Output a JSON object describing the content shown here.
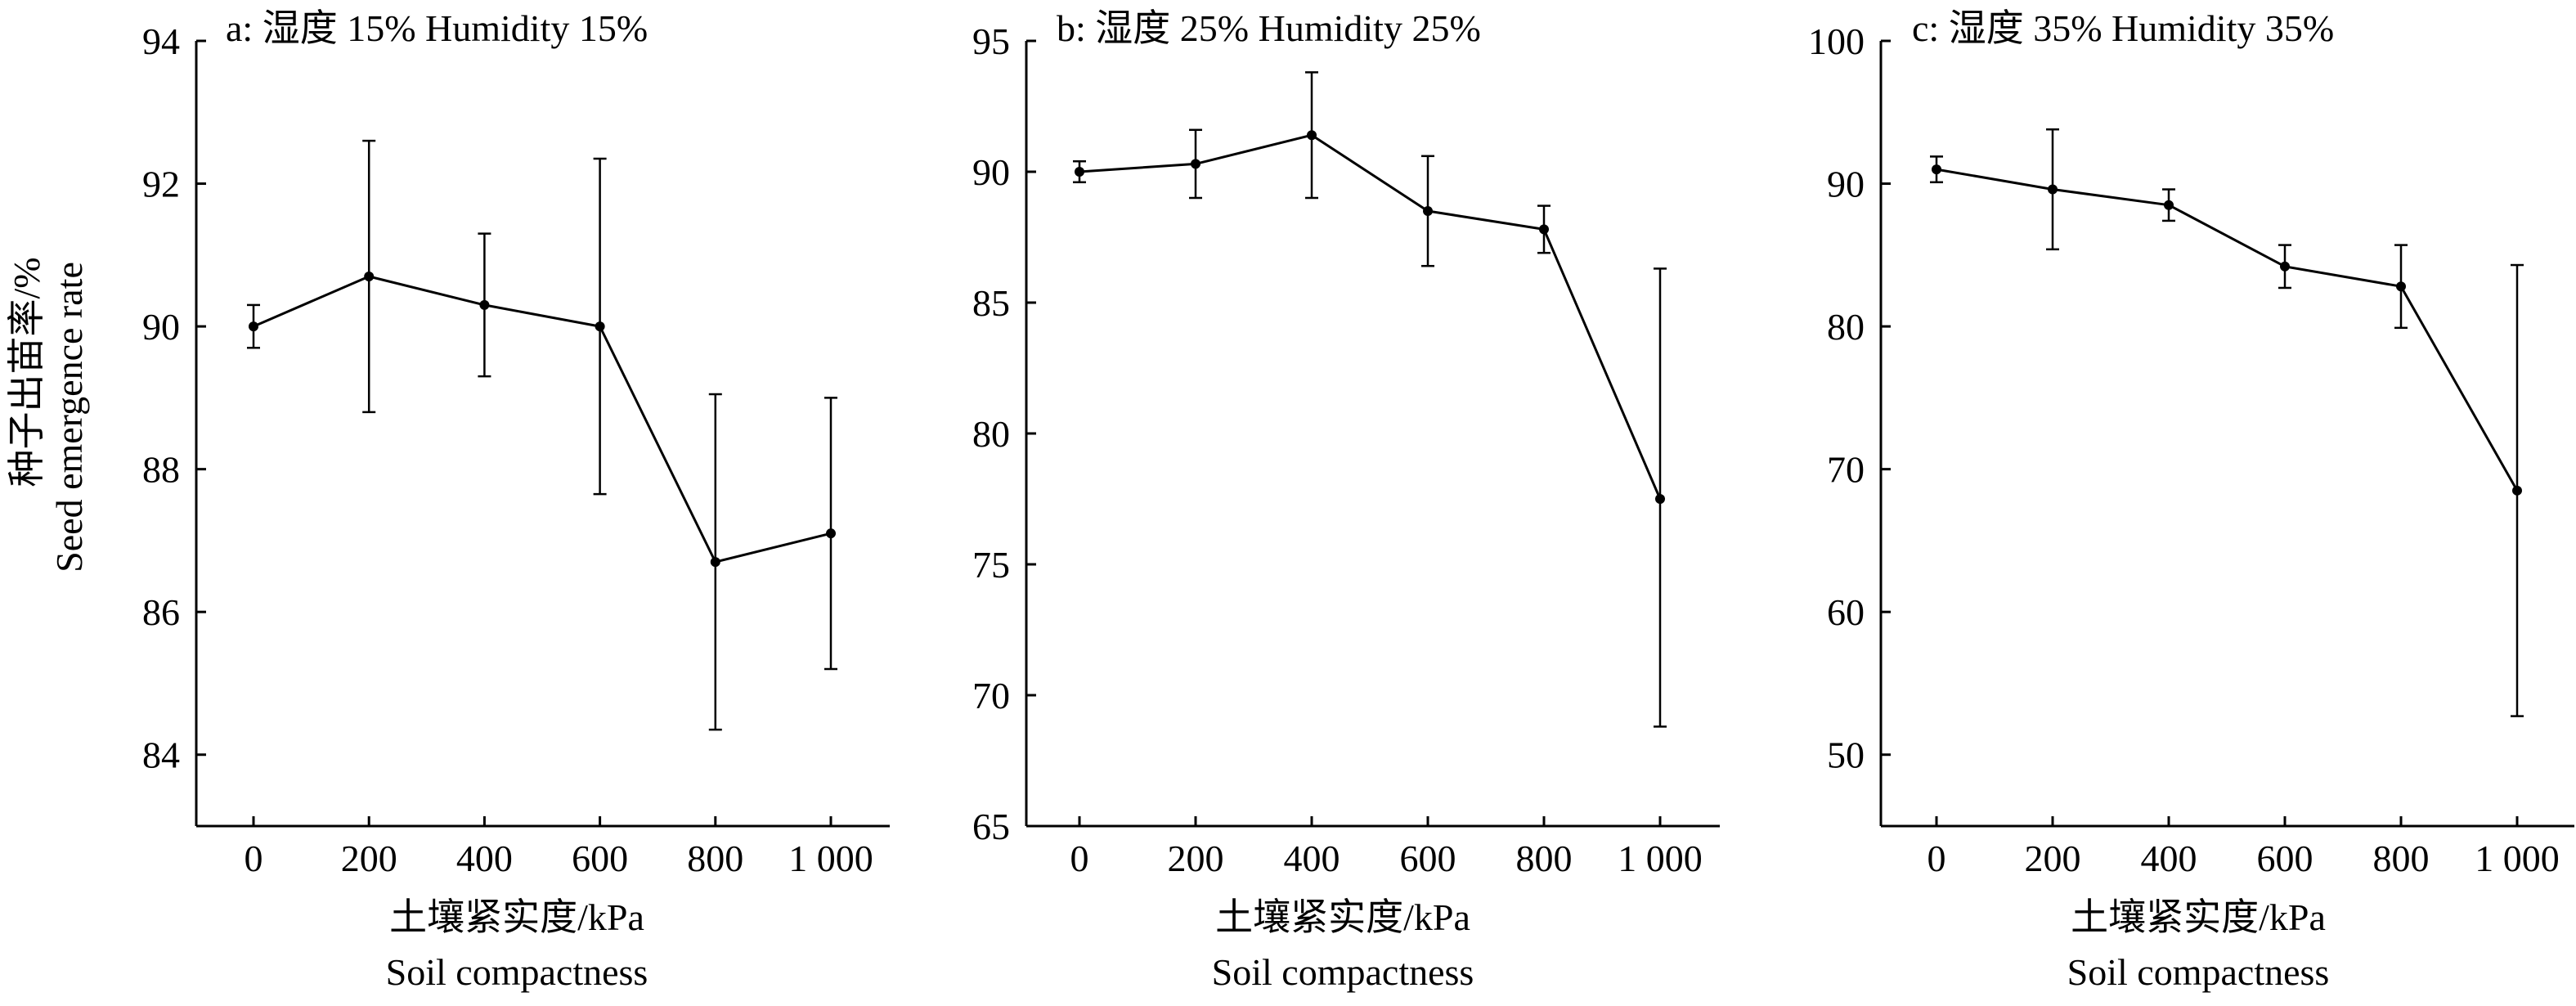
{
  "chart_data": [
    {
      "type": "line",
      "title": "a: 湿度 15% Humidity 15%",
      "ylabel_cn": "种子出苗率/%",
      "ylabel_en": "Seed emergence rate",
      "xlabel_cn": "土壤紧实度/kPa",
      "xlabel_en": "Soil compactness",
      "x": [
        0,
        200,
        400,
        600,
        800,
        1000
      ],
      "x_tick_labels": [
        "0",
        "200",
        "400",
        "600",
        "800",
        "1 000"
      ],
      "y": [
        90.0,
        90.7,
        90.3,
        90.0,
        86.7,
        87.1
      ],
      "error_low": [
        89.7,
        88.8,
        89.3,
        87.65,
        84.35,
        85.2
      ],
      "error_high": [
        90.3,
        92.6,
        91.3,
        92.35,
        89.05,
        89.0
      ],
      "ylim": [
        83,
        94
      ],
      "y_ticks": [
        84,
        86,
        88,
        90,
        92,
        94
      ],
      "xlim": [
        -100,
        1100
      ],
      "grid": false
    },
    {
      "type": "line",
      "title": "b: 湿度 25% Humidity 25%",
      "xlabel_cn": "土壤紧实度/kPa",
      "xlabel_en": "Soil compactness",
      "x": [
        0,
        200,
        400,
        600,
        800,
        1000
      ],
      "x_tick_labels": [
        "0",
        "200",
        "400",
        "600",
        "800",
        "1 000"
      ],
      "y": [
        90.0,
        90.3,
        91.4,
        88.5,
        87.8,
        77.5
      ],
      "error_low": [
        89.6,
        89.0,
        89.0,
        86.4,
        86.9,
        68.8
      ],
      "error_high": [
        90.4,
        91.6,
        93.8,
        90.6,
        88.7,
        86.3
      ],
      "ylim": [
        65,
        95
      ],
      "y_ticks": [
        65,
        70,
        75,
        80,
        85,
        90,
        95
      ],
      "xlim": [
        -100,
        1100
      ],
      "grid": false
    },
    {
      "type": "line",
      "title": "c: 湿度 35% Humidity 35%",
      "xlabel_cn": "土壤紧实度/kPa",
      "xlabel_en": "Soil compactness",
      "x": [
        0,
        200,
        400,
        600,
        800,
        1000
      ],
      "x_tick_labels": [
        "0",
        "200",
        "400",
        "600",
        "800",
        "1 000"
      ],
      "y": [
        91.0,
        89.6,
        88.5,
        84.2,
        82.8,
        68.5
      ],
      "error_low": [
        90.1,
        85.4,
        87.4,
        82.7,
        79.9,
        52.7
      ],
      "error_high": [
        91.9,
        93.8,
        89.6,
        85.7,
        85.7,
        84.3
      ],
      "ylim": [
        45,
        100
      ],
      "y_ticks": [
        50,
        60,
        70,
        80,
        90,
        100
      ],
      "xlim": [
        -100,
        1100
      ],
      "grid": false
    }
  ]
}
